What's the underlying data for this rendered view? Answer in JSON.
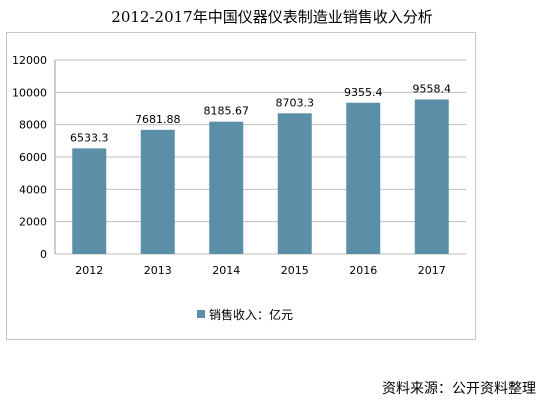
{
  "chart_data": {
    "type": "bar",
    "title": "2012-2017年中国仪器仪表制造业销售收入分析",
    "categories": [
      "2012",
      "2013",
      "2014",
      "2015",
      "2016",
      "2017"
    ],
    "series": [
      {
        "name": "销售收入：亿元",
        "values": [
          6533.3,
          7681.88,
          8185.67,
          8703.3,
          9355.4,
          9558.4
        ],
        "labels": [
          "6533.3",
          "7681.88",
          "8185.67",
          "8703.3",
          "9355.4",
          "9558.4"
        ]
      }
    ],
    "ylim": [
      0,
      12000
    ],
    "yticks": [
      "0",
      "2000",
      "4000",
      "6000",
      "8000",
      "10000",
      "12000"
    ],
    "grid": true,
    "legend": "bottom",
    "bar_color": "#5b8fa8",
    "grid_color": "#bfbfbf"
  },
  "footer": {
    "source": "资料来源：公开资料整理"
  }
}
